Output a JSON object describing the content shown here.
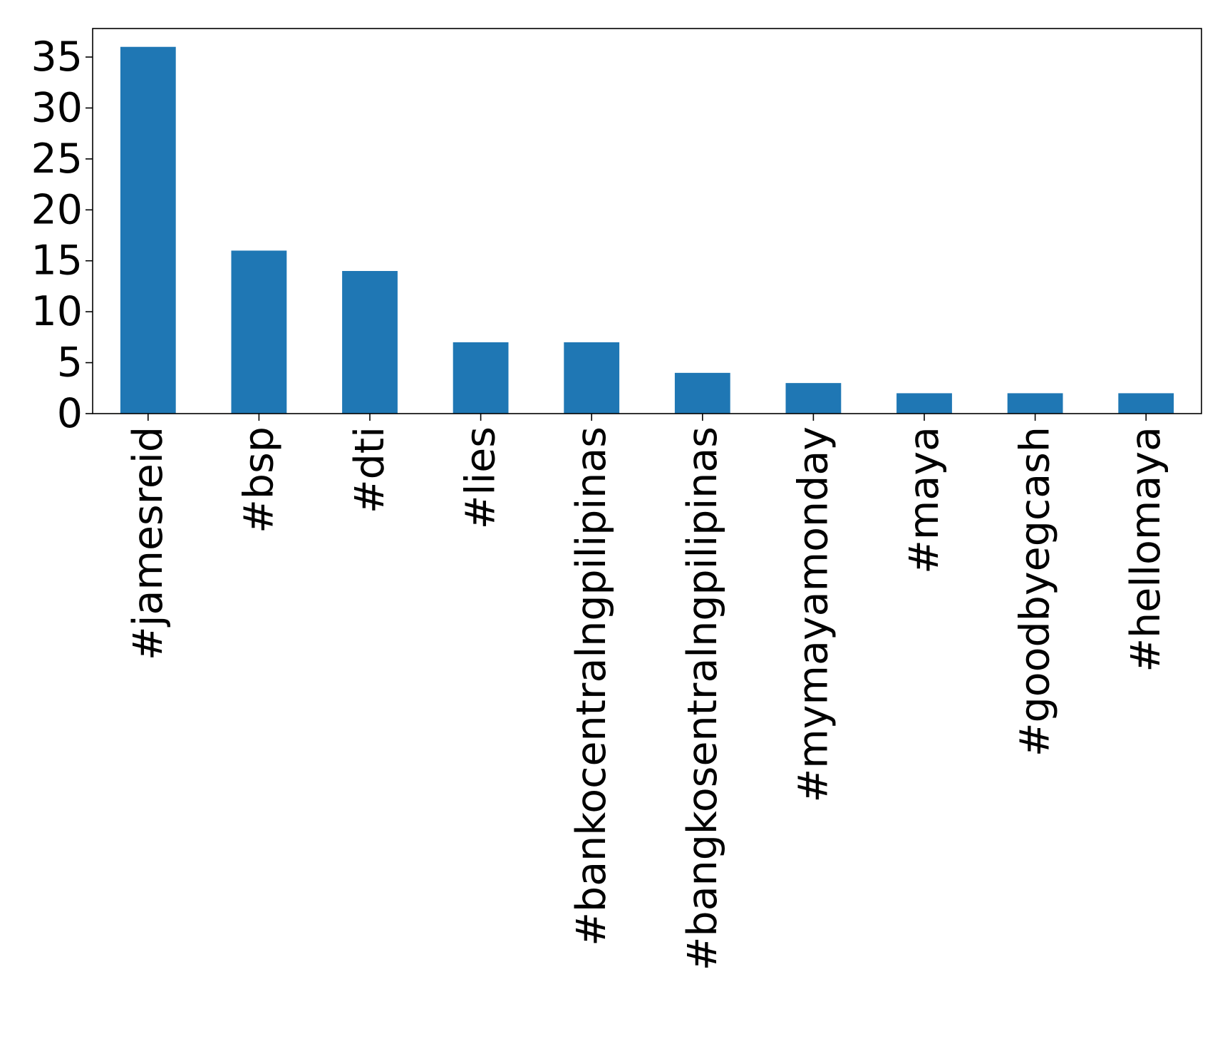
{
  "chart_data": {
    "type": "bar",
    "title": "",
    "xlabel": "",
    "ylabel": "",
    "categories": [
      "#jamesreid",
      "#bsp",
      "#dti",
      "#lies",
      "#bankocentralngpilipinas",
      "#bangkosentralngpilipinas",
      "#mymayamonday",
      "#maya",
      "#goodbyegcash",
      "#hellomaya"
    ],
    "values": [
      36,
      16,
      14,
      7,
      7,
      4,
      3,
      2,
      2,
      2
    ],
    "ylim": [
      0,
      37.8
    ],
    "yticks": [
      0,
      5,
      10,
      15,
      20,
      25,
      30,
      35
    ],
    "ytick_labels": [
      "0",
      "5",
      "10",
      "15",
      "20",
      "25",
      "30",
      "35"
    ],
    "grid": false,
    "legend": "none",
    "bar_color": "#1f77b4"
  }
}
